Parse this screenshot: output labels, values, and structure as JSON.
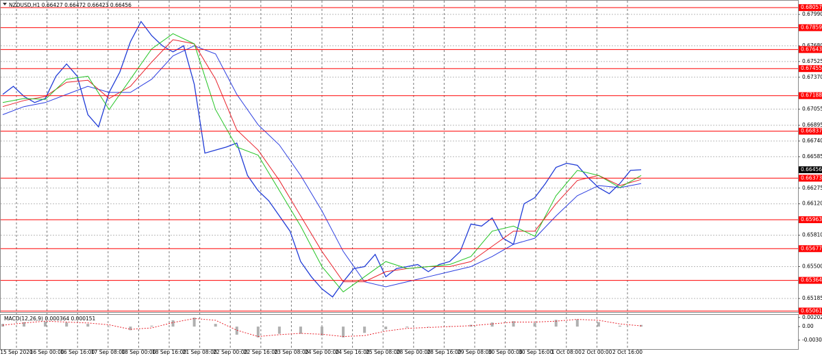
{
  "chart_data": [
    {
      "type": "line",
      "title": "NZDUSD,H1  0.66427 0.66472 0.66423 0.66456",
      "x_labels": [
        "15 Sep 2020",
        "16 Sep 00:00",
        "16 Sep 16:00",
        "17 Sep 08:00",
        "18 Sep 00:00",
        "18 Sep 16:00",
        "21 Sep 08:00",
        "22 Sep 00:00",
        "22 Sep 16:00",
        "23 Sep 08:00",
        "24 Sep 00:00",
        "24 Sep 16:00",
        "25 Sep 08:00",
        "28 Sep 00:00",
        "28 Sep 16:00",
        "29 Sep 08:00",
        "30 Sep 00:00",
        "30 Sep 16:00",
        "1 Oct 08:00",
        "2 Oct 00:00",
        "2 Oct 16:00"
      ],
      "ylim": [
        0.65057,
        0.68112
      ],
      "yticks": [
        {
          "value": 0.6799,
          "label": "0.67990"
        },
        {
          "value": 0.6768,
          "label": "0.67680"
        },
        0.67525,
        {
          "value": 0.6737,
          "label": "0.67370"
        },
        0.67055,
        0.66895,
        {
          "value": 0.6674,
          "label": "0.66740"
        },
        0.66585,
        0.66275,
        {
          "value": 0.6612,
          "label": "0.66120"
        },
        {
          "value": 0.6581,
          "label": "0.65810"
        },
        {
          "value": 0.655,
          "label": "0.65500"
        },
        0.65185
      ],
      "grid": true,
      "series": [
        {
          "color": "#1f3bd6",
          "values": [
            0.672,
            0.6728,
            0.6718,
            0.6712,
            0.6716,
            0.6738,
            0.675,
            0.6738,
            0.67,
            0.6688,
            0.6722,
            0.6742,
            0.6772,
            0.6792,
            0.6778,
            0.6768,
            0.6762,
            0.6768,
            0.673,
            0.6662,
            0.6665,
            0.6668,
            0.6672,
            0.664,
            0.6625,
            0.6615,
            0.66,
            0.6585,
            0.6555,
            0.654,
            0.6528,
            0.652,
            0.6535,
            0.6548,
            0.655,
            0.6562,
            0.654,
            0.6548,
            0.655,
            0.6552,
            0.6545,
            0.6552,
            0.6555,
            0.6565,
            0.6592,
            0.659,
            0.6598,
            0.6578,
            0.6572,
            0.6612,
            0.6618,
            0.6632,
            0.6648,
            0.6652,
            0.665,
            0.6638,
            0.6628,
            0.6622,
            0.6632,
            0.6645,
            0.66456
          ]
        },
        {
          "color": "#2b3de0",
          "values": [
            0.67,
            0.6708,
            0.6712,
            0.672,
            0.6728,
            0.6722,
            0.6722,
            0.6735,
            0.6758,
            0.6768,
            0.676,
            0.672,
            0.669,
            0.667,
            0.664,
            0.6605,
            0.6565,
            0.6535,
            0.653,
            0.6535,
            0.654,
            0.6545,
            0.655,
            0.656,
            0.6572,
            0.6578,
            0.66,
            0.662,
            0.663,
            0.6628,
            0.6632
          ]
        },
        {
          "color": "#e8202a",
          "values": [
            0.6708,
            0.6714,
            0.6718,
            0.6732,
            0.6734,
            0.6716,
            0.6728,
            0.6752,
            0.6774,
            0.677,
            0.6735,
            0.6685,
            0.6665,
            0.6635,
            0.66,
            0.6565,
            0.6535,
            0.6535,
            0.6545,
            0.6548,
            0.655,
            0.655,
            0.6555,
            0.657,
            0.6585,
            0.6585,
            0.6612,
            0.6635,
            0.664,
            0.663,
            0.6636
          ]
        },
        {
          "color": "#22c422",
          "values": [
            0.6712,
            0.6716,
            0.6715,
            0.6735,
            0.6738,
            0.6705,
            0.6735,
            0.6765,
            0.678,
            0.677,
            0.6705,
            0.6668,
            0.666,
            0.6625,
            0.659,
            0.655,
            0.6525,
            0.654,
            0.6555,
            0.6548,
            0.655,
            0.6552,
            0.656,
            0.6585,
            0.659,
            0.658,
            0.662,
            0.6645,
            0.664,
            0.6628,
            0.664
          ]
        }
      ],
      "levels": [
        0.68057,
        0.67859,
        0.67643,
        0.67455,
        0.67188,
        0.66837,
        0.66373,
        0.65963,
        0.65677,
        0.65364,
        0.65061
      ],
      "level_color": "#ff0000",
      "last_price": 0.66456
    },
    {
      "type": "macd",
      "title": "MACD(12,26,9) 0.000364 0.000151",
      "ylim": [
        -0.005,
        0.0026
      ],
      "yticks": [
        0.002024,
        {
          "value": 0,
          "label": "0.00"
        },
        -0.003008
      ],
      "histogram": {
        "color": "#b0b0b0",
        "values": [
          0.0006,
          0.001,
          0.0011,
          0.0009,
          0.0006,
          0.0,
          -0.0008,
          0.0002,
          0.0014,
          0.002,
          0.0006,
          -0.0018,
          -0.0024,
          -0.0016,
          -0.0016,
          -0.002,
          -0.0024,
          -0.0014,
          -0.0006,
          -0.0002,
          0.0,
          0.0001,
          0.0004,
          0.0009,
          0.0012,
          0.0008,
          0.0015,
          0.0016,
          0.001,
          0.0002,
          0.000364
        ]
      },
      "signal": {
        "color": "#e8202a",
        "values": [
          0.0003,
          0.0008,
          0.0012,
          0.001,
          0.0008,
          0.0004,
          -0.0006,
          -0.0003,
          0.0009,
          0.0018,
          0.0014,
          -0.0008,
          -0.0022,
          -0.0018,
          -0.0015,
          -0.0017,
          -0.0022,
          -0.002,
          -0.001,
          -0.0004,
          -0.0002,
          0.0,
          0.0002,
          0.0006,
          0.001,
          0.001,
          0.0012,
          0.0016,
          0.0014,
          0.0006,
          0.000151
        ]
      }
    }
  ]
}
